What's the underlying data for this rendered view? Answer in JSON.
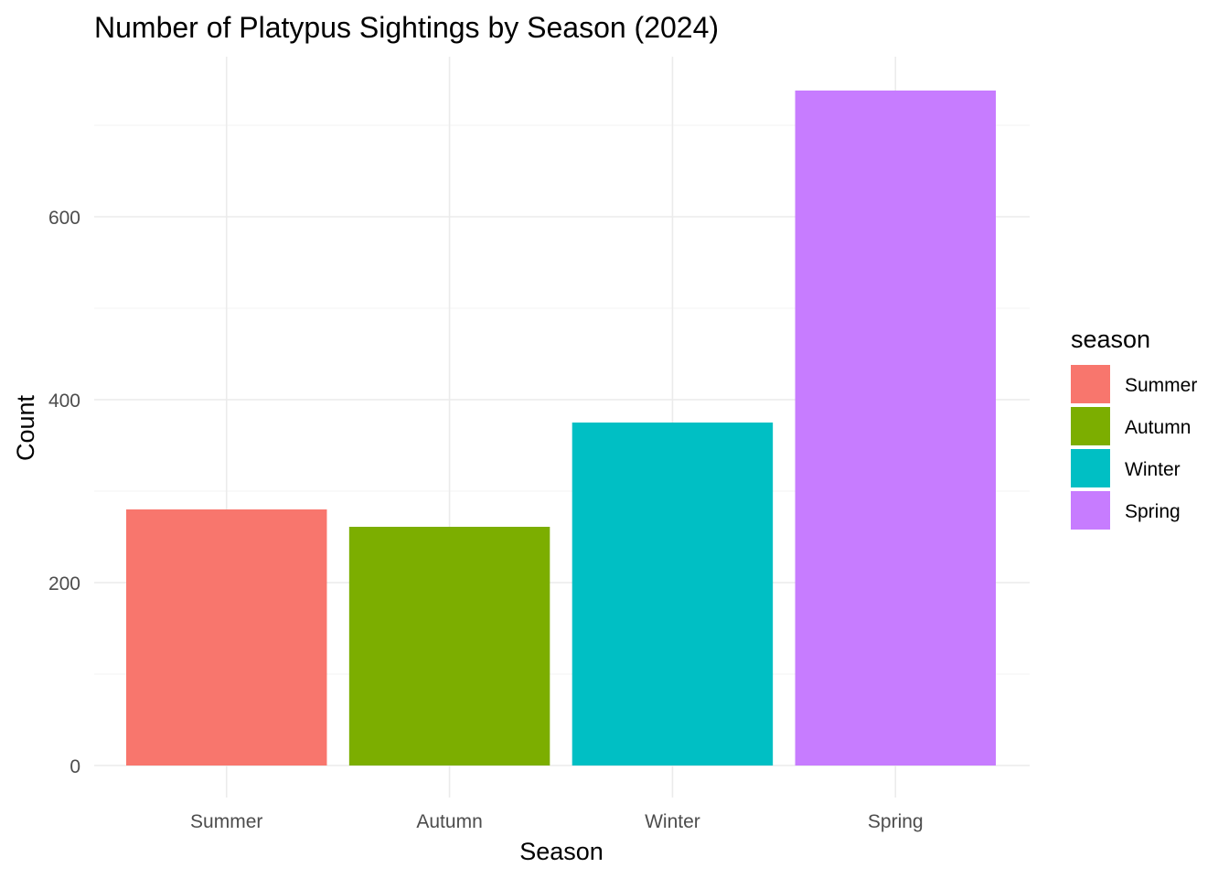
{
  "chart_data": {
    "type": "bar",
    "title": "Number of Platypus Sightings by Season (2024)",
    "xlabel": "Season",
    "ylabel": "Count",
    "categories": [
      "Summer",
      "Autumn",
      "Winter",
      "Spring"
    ],
    "values": [
      280,
      261,
      375,
      738
    ],
    "colors": [
      "#F8766D",
      "#7CAE00",
      "#00BFC4",
      "#C77CFF"
    ],
    "ylim": [
      0,
      775
    ],
    "yticks": [
      0,
      200,
      400,
      600
    ],
    "yticks_minor": [
      100,
      300,
      500,
      700
    ],
    "grid": true,
    "legend": {
      "title": "season",
      "position": "right",
      "entries": [
        "Summer",
        "Autumn",
        "Winter",
        "Spring"
      ]
    }
  }
}
